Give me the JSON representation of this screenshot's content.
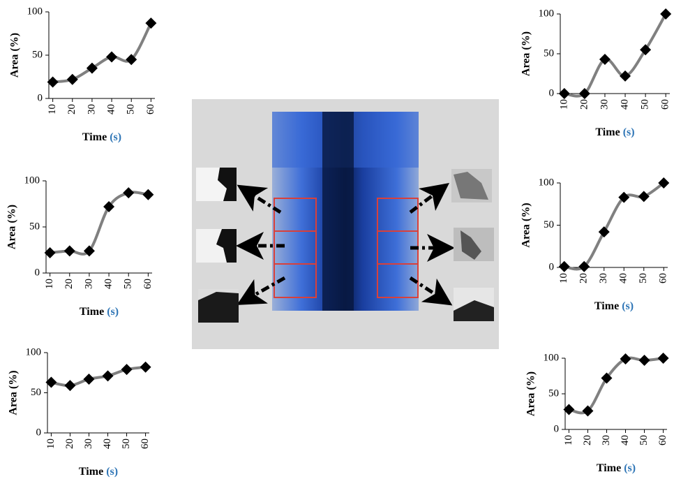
{
  "chart_data": [
    {
      "type": "line",
      "xlabel": "Time",
      "xlabel_unit": "(s)",
      "ylabel": "Area (%)",
      "x": [
        10,
        20,
        30,
        40,
        50,
        60
      ],
      "values": [
        19,
        22,
        35,
        48,
        45,
        87
      ],
      "xlim": [
        8,
        62
      ],
      "xticks": [
        10,
        20,
        30,
        40,
        50,
        60
      ],
      "ylim": [
        0,
        100
      ],
      "yticks": [
        0,
        50,
        100
      ],
      "color": "#808080",
      "marker_color": "#000000"
    },
    {
      "type": "line",
      "xlabel": "Time",
      "xlabel_unit": "(s)",
      "ylabel": "Area (%)",
      "x": [
        10,
        20,
        30,
        40,
        50,
        60
      ],
      "values": [
        22,
        24,
        24,
        72,
        87,
        85
      ],
      "xlim": [
        8,
        62
      ],
      "xticks": [
        10,
        20,
        30,
        40,
        50,
        60
      ],
      "ylim": [
        0,
        100
      ],
      "yticks": [
        0,
        50,
        100
      ],
      "color": "#808080",
      "marker_color": "#000000"
    },
    {
      "type": "line",
      "xlabel": "Time",
      "xlabel_unit": "(s)",
      "ylabel": "Area (%)",
      "x": [
        10,
        20,
        30,
        40,
        50,
        60
      ],
      "values": [
        63,
        59,
        67,
        71,
        79,
        82
      ],
      "xlim": [
        8,
        62
      ],
      "xticks": [
        10,
        20,
        30,
        40,
        50,
        60
      ],
      "ylim": [
        0,
        100
      ],
      "yticks": [
        0,
        50,
        100
      ],
      "color": "#808080",
      "marker_color": "#000000"
    },
    {
      "type": "line",
      "xlabel": "Time",
      "xlabel_unit": "(s)",
      "ylabel": "Area (%)",
      "x": [
        10,
        20,
        30,
        40,
        50,
        60
      ],
      "values": [
        0,
        0,
        43,
        22,
        55,
        100
      ],
      "xlim": [
        8,
        62
      ],
      "xticks": [
        10,
        20,
        30,
        40,
        50,
        60
      ],
      "ylim": [
        0,
        100
      ],
      "yticks": [
        0,
        50,
        100
      ],
      "color": "#808080",
      "marker_color": "#000000"
    },
    {
      "type": "line",
      "xlabel": "Time",
      "xlabel_unit": "(s)",
      "ylabel": "Area (%)",
      "x": [
        10,
        20,
        30,
        40,
        50,
        60
      ],
      "values": [
        1,
        1,
        42,
        83,
        84,
        100
      ],
      "xlim": [
        8,
        62
      ],
      "xticks": [
        10,
        20,
        30,
        40,
        50,
        60
      ],
      "ylim": [
        0,
        100
      ],
      "yticks": [
        0,
        50,
        100
      ],
      "color": "#808080",
      "marker_color": "#000000"
    },
    {
      "type": "line",
      "xlabel": "Time",
      "xlabel_unit": "(s)",
      "ylabel": "Area (%)",
      "x": [
        10,
        20,
        30,
        40,
        50,
        60
      ],
      "values": [
        28,
        26,
        72,
        99,
        97,
        100
      ],
      "xlim": [
        8,
        62
      ],
      "xticks": [
        10,
        20,
        30,
        40,
        50,
        60
      ],
      "ylim": [
        0,
        100
      ],
      "yticks": [
        0,
        50,
        100
      ],
      "color": "#808080",
      "marker_color": "#000000"
    }
  ]
}
